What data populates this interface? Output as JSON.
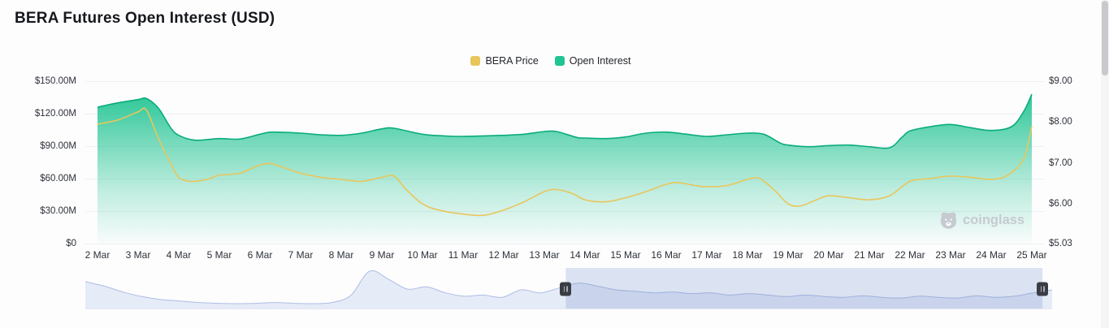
{
  "page": {
    "title": "BERA Futures Open Interest (USD)"
  },
  "legend": [
    {
      "label": "BERA Price",
      "color": "#e9c65c"
    },
    {
      "label": "Open Interest",
      "color": "#1fc492"
    }
  ],
  "watermark": {
    "text": "coinglass"
  },
  "chart_data": {
    "type": "area",
    "title": "BERA Futures Open Interest (USD)",
    "grid": "horizontal",
    "legend_position": "top-center",
    "x_unit": "day index from 2 Mar (0 = 2 Mar, 23 = 25 Mar)",
    "categories": [
      "2 Mar",
      "3 Mar",
      "4 Mar",
      "5 Mar",
      "6 Mar",
      "7 Mar",
      "8 Mar",
      "9 Mar",
      "10 Mar",
      "11 Mar",
      "12 Mar",
      "13 Mar",
      "14 Mar",
      "15 Mar",
      "16 Mar",
      "17 Mar",
      "18 Mar",
      "19 Mar",
      "20 Mar",
      "21 Mar",
      "22 Mar",
      "23 Mar",
      "24 Mar",
      "25 Mar"
    ],
    "left_axis": {
      "title": "Open Interest (USD)",
      "unit": "million USD",
      "min": 0,
      "max": 150,
      "tick_values": [
        150,
        120,
        90,
        60,
        30,
        0
      ],
      "tick_labels": [
        "$150.00M",
        "$120.00M",
        "$90.00M",
        "$60.00M",
        "$30.00M",
        "$0"
      ]
    },
    "right_axis": {
      "title": "BERA Price (USD)",
      "min": 5.03,
      "max": 9,
      "tick_values": [
        9,
        8,
        7,
        6,
        5.03
      ],
      "tick_labels": [
        "$9.00",
        "$8.00",
        "$7.00",
        "$6.00",
        "$5.03"
      ]
    },
    "series": [
      {
        "name": "Open Interest",
        "type": "area",
        "axis": "left",
        "unit": "million USD",
        "fill_color": "#23c492",
        "line_color": "#0aac7c",
        "x": [
          0,
          0.5,
          1,
          1.2,
          1.5,
          1.8,
          2,
          2.4,
          3,
          3.5,
          4,
          4.3,
          5,
          5.5,
          6,
          6.5,
          7,
          7.3,
          8,
          8.5,
          9,
          10,
          10.5,
          11,
          11.3,
          11.8,
          12,
          12.5,
          13,
          13.5,
          14,
          14.5,
          15,
          15.5,
          16,
          16.4,
          16.8,
          17,
          17.5,
          18,
          18.5,
          19,
          19.5,
          19.8,
          20,
          20.5,
          21,
          21.5,
          22,
          22.5,
          22.8,
          23
        ],
        "values": [
          126,
          130,
          133,
          134,
          125,
          107,
          100,
          95.5,
          97,
          96.5,
          101,
          103,
          102,
          100.5,
          100,
          102,
          106,
          106.5,
          101,
          99.5,
          99,
          100,
          101,
          103.5,
          103.5,
          98,
          97.5,
          97,
          98.5,
          102,
          103,
          101,
          99,
          100.5,
          102,
          101,
          93,
          91,
          89.5,
          90.5,
          91,
          89.5,
          88.5,
          98,
          104,
          108,
          110,
          107,
          104.5,
          108,
          122,
          138
        ]
      },
      {
        "name": "BERA Price",
        "type": "line",
        "axis": "right",
        "unit": "USD",
        "line_color": "#e9c65c",
        "x": [
          0,
          0.5,
          1,
          1.2,
          1.5,
          1.8,
          2,
          2.3,
          2.7,
          3,
          3.5,
          4,
          4.3,
          4.7,
          5,
          5.5,
          6,
          6.5,
          7,
          7.3,
          7.6,
          8,
          8.4,
          9,
          9.5,
          10,
          10.5,
          11,
          11.3,
          11.7,
          12,
          12.5,
          13,
          13.5,
          14,
          14.3,
          14.7,
          15,
          15.5,
          16,
          16.3,
          16.7,
          17,
          17.3,
          17.7,
          18,
          18.5,
          19,
          19.5,
          20,
          20.5,
          21,
          21.5,
          22,
          22.4,
          22.8,
          23
        ],
        "values": [
          7.95,
          8.05,
          8.25,
          8.3,
          7.6,
          7.0,
          6.65,
          6.55,
          6.6,
          6.7,
          6.75,
          6.95,
          6.98,
          6.85,
          6.75,
          6.65,
          6.6,
          6.55,
          6.65,
          6.68,
          6.35,
          6.0,
          5.85,
          5.75,
          5.72,
          5.85,
          6.05,
          6.3,
          6.35,
          6.25,
          6.1,
          6.05,
          6.15,
          6.3,
          6.48,
          6.52,
          6.45,
          6.42,
          6.45,
          6.6,
          6.62,
          6.3,
          6.0,
          5.95,
          6.1,
          6.2,
          6.15,
          6.1,
          6.2,
          6.55,
          6.62,
          6.68,
          6.65,
          6.6,
          6.7,
          7.1,
          7.9
        ]
      }
    ]
  },
  "navigator": {
    "values": [
      0.72,
      0.6,
      0.44,
      0.32,
      0.24,
      0.2,
      0.16,
      0.14,
      0.13,
      0.14,
      0.16,
      0.14,
      0.13,
      0.16,
      0.35,
      1.0,
      0.78,
      0.52,
      0.58,
      0.42,
      0.33,
      0.36,
      0.3,
      0.5,
      0.42,
      0.55,
      0.68,
      0.6,
      0.5,
      0.46,
      0.42,
      0.44,
      0.4,
      0.42,
      0.36,
      0.4,
      0.36,
      0.32,
      0.36,
      0.32,
      0.3,
      0.34,
      0.3,
      0.28,
      0.33,
      0.3,
      0.28,
      0.34,
      0.3,
      0.33,
      0.42,
      0.5
    ],
    "selection": {
      "start": 0.497,
      "end": 0.99
    },
    "fill_color": "#e6ebf8",
    "line_color": "#aebde4",
    "mask_color": "rgba(102,133,194,0.22)",
    "handle_color": "#3a3d43"
  }
}
